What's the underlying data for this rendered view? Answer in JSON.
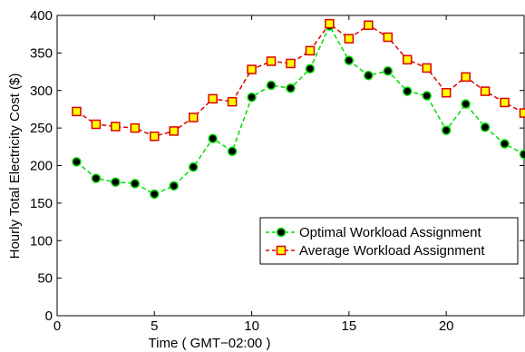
{
  "chart_data": {
    "type": "line",
    "xlabel": "Time ( GMT−02:00 )",
    "ylabel": "Hourly Total Electricity Cost ($)",
    "xlim": [
      0,
      24
    ],
    "ylim": [
      0,
      400
    ],
    "xticks": [
      0,
      5,
      10,
      15,
      20
    ],
    "yticks": [
      0,
      50,
      100,
      150,
      200,
      250,
      300,
      350,
      400
    ],
    "grid": false,
    "legend_position": "lower-right",
    "x": [
      1,
      2,
      3,
      4,
      5,
      6,
      7,
      8,
      9,
      10,
      11,
      12,
      13,
      14,
      15,
      16,
      17,
      18,
      19,
      20,
      21,
      22,
      23,
      24
    ],
    "series": [
      {
        "name": "Optimal Workload Assignment",
        "color": "#00dd00",
        "marker_color": "#000000",
        "marker": "circle",
        "values": [
          205,
          183,
          178,
          176,
          162,
          173,
          198,
          236,
          219,
          291,
          307,
          303,
          329,
          386,
          340,
          320,
          326,
          299,
          293,
          247,
          282,
          251,
          229,
          215
        ]
      },
      {
        "name": "Average Workload Assignment",
        "color": "#dd0000",
        "marker_color": "#ffff00",
        "marker": "square",
        "values": [
          272,
          255,
          252,
          250,
          239,
          246,
          264,
          289,
          285,
          328,
          339,
          336,
          353,
          389,
          369,
          387,
          371,
          341,
          330,
          297,
          318,
          299,
          284,
          270
        ]
      }
    ]
  }
}
